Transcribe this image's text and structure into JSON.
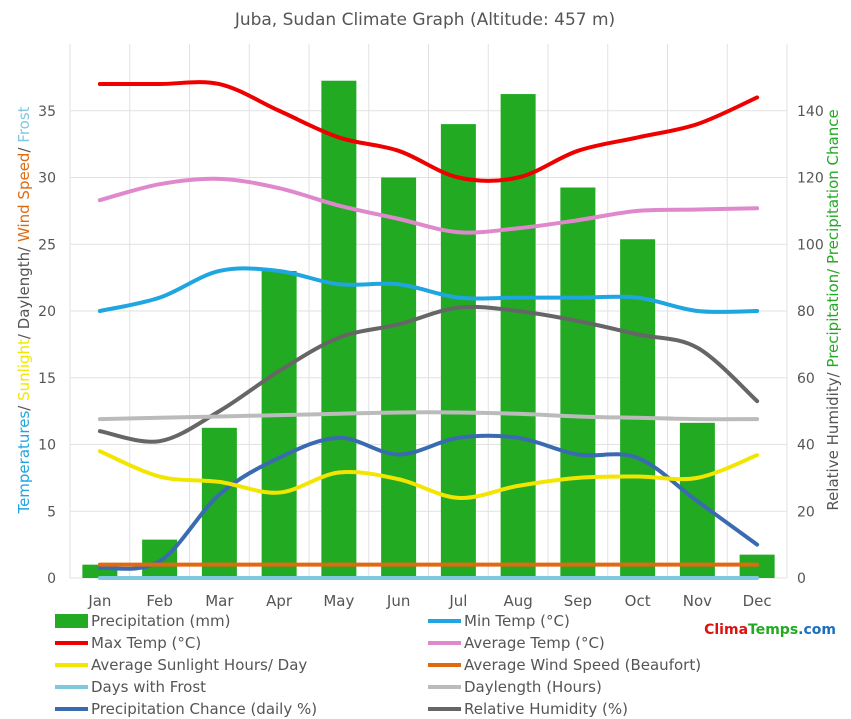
{
  "chart_data": {
    "type": "bar",
    "title": "Juba, Sudan Climate Graph (Altitude: 457 m)",
    "watermark": "ClimaTemps.com",
    "categories": [
      "Jan",
      "Feb",
      "Mar",
      "Apr",
      "May",
      "Jun",
      "Jul",
      "Aug",
      "Sep",
      "Oct",
      "Nov",
      "Dec"
    ],
    "left_axis": {
      "label_parts": [
        {
          "text": "Temperatures",
          "color": "#1fa5e0"
        },
        {
          "text": "/ ",
          "color": "#555555"
        },
        {
          "text": "Sunlight",
          "color": "#f2e600"
        },
        {
          "text": "/ Daylength/ ",
          "color": "#555555"
        },
        {
          "text": "Wind Speed",
          "color": "#e06a10"
        },
        {
          "text": "/ ",
          "color": "#555555"
        },
        {
          "text": "Frost",
          "color": "#7ec8e0"
        }
      ],
      "ylim": [
        0,
        40
      ],
      "ticks": [
        0,
        5,
        10,
        15,
        20,
        25,
        30,
        35
      ]
    },
    "right_axis": {
      "label_parts": [
        {
          "text": "Relative Humidity/ ",
          "color": "#555555"
        },
        {
          "text": "Precipitation/ Precipitation Chance",
          "color": "#22aa22"
        }
      ],
      "ylim": [
        0,
        160
      ],
      "ticks": [
        0,
        20,
        40,
        60,
        80,
        100,
        120,
        140
      ]
    },
    "grid": true,
    "bars": {
      "name": "Precipitation (mm)",
      "color": "#22aa22",
      "axis": "right",
      "values": [
        4,
        11.5,
        45,
        92,
        149,
        120,
        136,
        145,
        117,
        101.5,
        46.5,
        7
      ]
    },
    "series": [
      {
        "name": "Max Temp (°C)",
        "color": "#ee0000",
        "axis": "left",
        "values": [
          37,
          37,
          37,
          35,
          33,
          32,
          30,
          30,
          32,
          33,
          34,
          36
        ]
      },
      {
        "name": "Average Temp (°C)",
        "color": "#e088cc",
        "axis": "left",
        "values": [
          28.3,
          29.5,
          29.9,
          29.2,
          27.9,
          26.9,
          25.9,
          26.2,
          26.8,
          27.5,
          27.6,
          27.7
        ]
      },
      {
        "name": "Min Temp (°C)",
        "color": "#1fa5e0",
        "axis": "left",
        "values": [
          20,
          21,
          23,
          23,
          22,
          22,
          21,
          21,
          21,
          21,
          20,
          20
        ]
      },
      {
        "name": "Relative Humidity (%)",
        "color": "#666666",
        "axis": "right",
        "values": [
          44,
          41,
          50,
          62,
          72,
          76,
          81,
          80,
          77,
          73,
          69,
          53
        ]
      },
      {
        "name": "Daylength (Hours)",
        "color": "#bbbbbb",
        "axis": "left",
        "values": [
          11.9,
          12.0,
          12.1,
          12.2,
          12.3,
          12.4,
          12.4,
          12.3,
          12.1,
          12.0,
          11.9,
          11.9
        ]
      },
      {
        "name": "Precipitation Chance (daily %)",
        "color": "#3a6ab0",
        "axis": "right",
        "values": [
          3,
          5,
          25,
          36,
          42,
          37,
          42,
          42,
          37,
          36,
          23,
          10
        ]
      },
      {
        "name": "Average Sunlight Hours/ Day",
        "color": "#f2e600",
        "axis": "left",
        "values": [
          9.5,
          7.6,
          7.2,
          6.4,
          7.9,
          7.4,
          6.0,
          6.9,
          7.5,
          7.6,
          7.5,
          9.2
        ]
      },
      {
        "name": "Average Wind Speed (Beaufort)",
        "color": "#e06a10",
        "axis": "left",
        "values": [
          1,
          1,
          1,
          1,
          1,
          1,
          1,
          1,
          1,
          1,
          1,
          1
        ]
      },
      {
        "name": "Days with Frost",
        "color": "#7ec8e0",
        "axis": "left",
        "values": [
          0,
          0,
          0,
          0,
          0,
          0,
          0,
          0,
          0,
          0,
          0,
          0
        ]
      }
    ],
    "legend": [
      {
        "name": "Precipitation (mm)",
        "color": "#22aa22",
        "kind": "box"
      },
      {
        "name": "Min Temp (°C)",
        "color": "#1fa5e0",
        "kind": "line"
      },
      {
        "name": "Max Temp (°C)",
        "color": "#ee0000",
        "kind": "line"
      },
      {
        "name": "Average Temp (°C)",
        "color": "#e088cc",
        "kind": "line"
      },
      {
        "name": "Average Sunlight Hours/ Day",
        "color": "#f2e600",
        "kind": "line"
      },
      {
        "name": "Average Wind Speed (Beaufort)",
        "color": "#e06a10",
        "kind": "line"
      },
      {
        "name": "Days with Frost",
        "color": "#7ec8e0",
        "kind": "line"
      },
      {
        "name": "Daylength (Hours)",
        "color": "#bbbbbb",
        "kind": "line"
      },
      {
        "name": "Precipitation Chance (daily %)",
        "color": "#3a6ab0",
        "kind": "line"
      },
      {
        "name": "Relative Humidity (%)",
        "color": "#666666",
        "kind": "line"
      }
    ],
    "legend_placement": "bottom"
  }
}
